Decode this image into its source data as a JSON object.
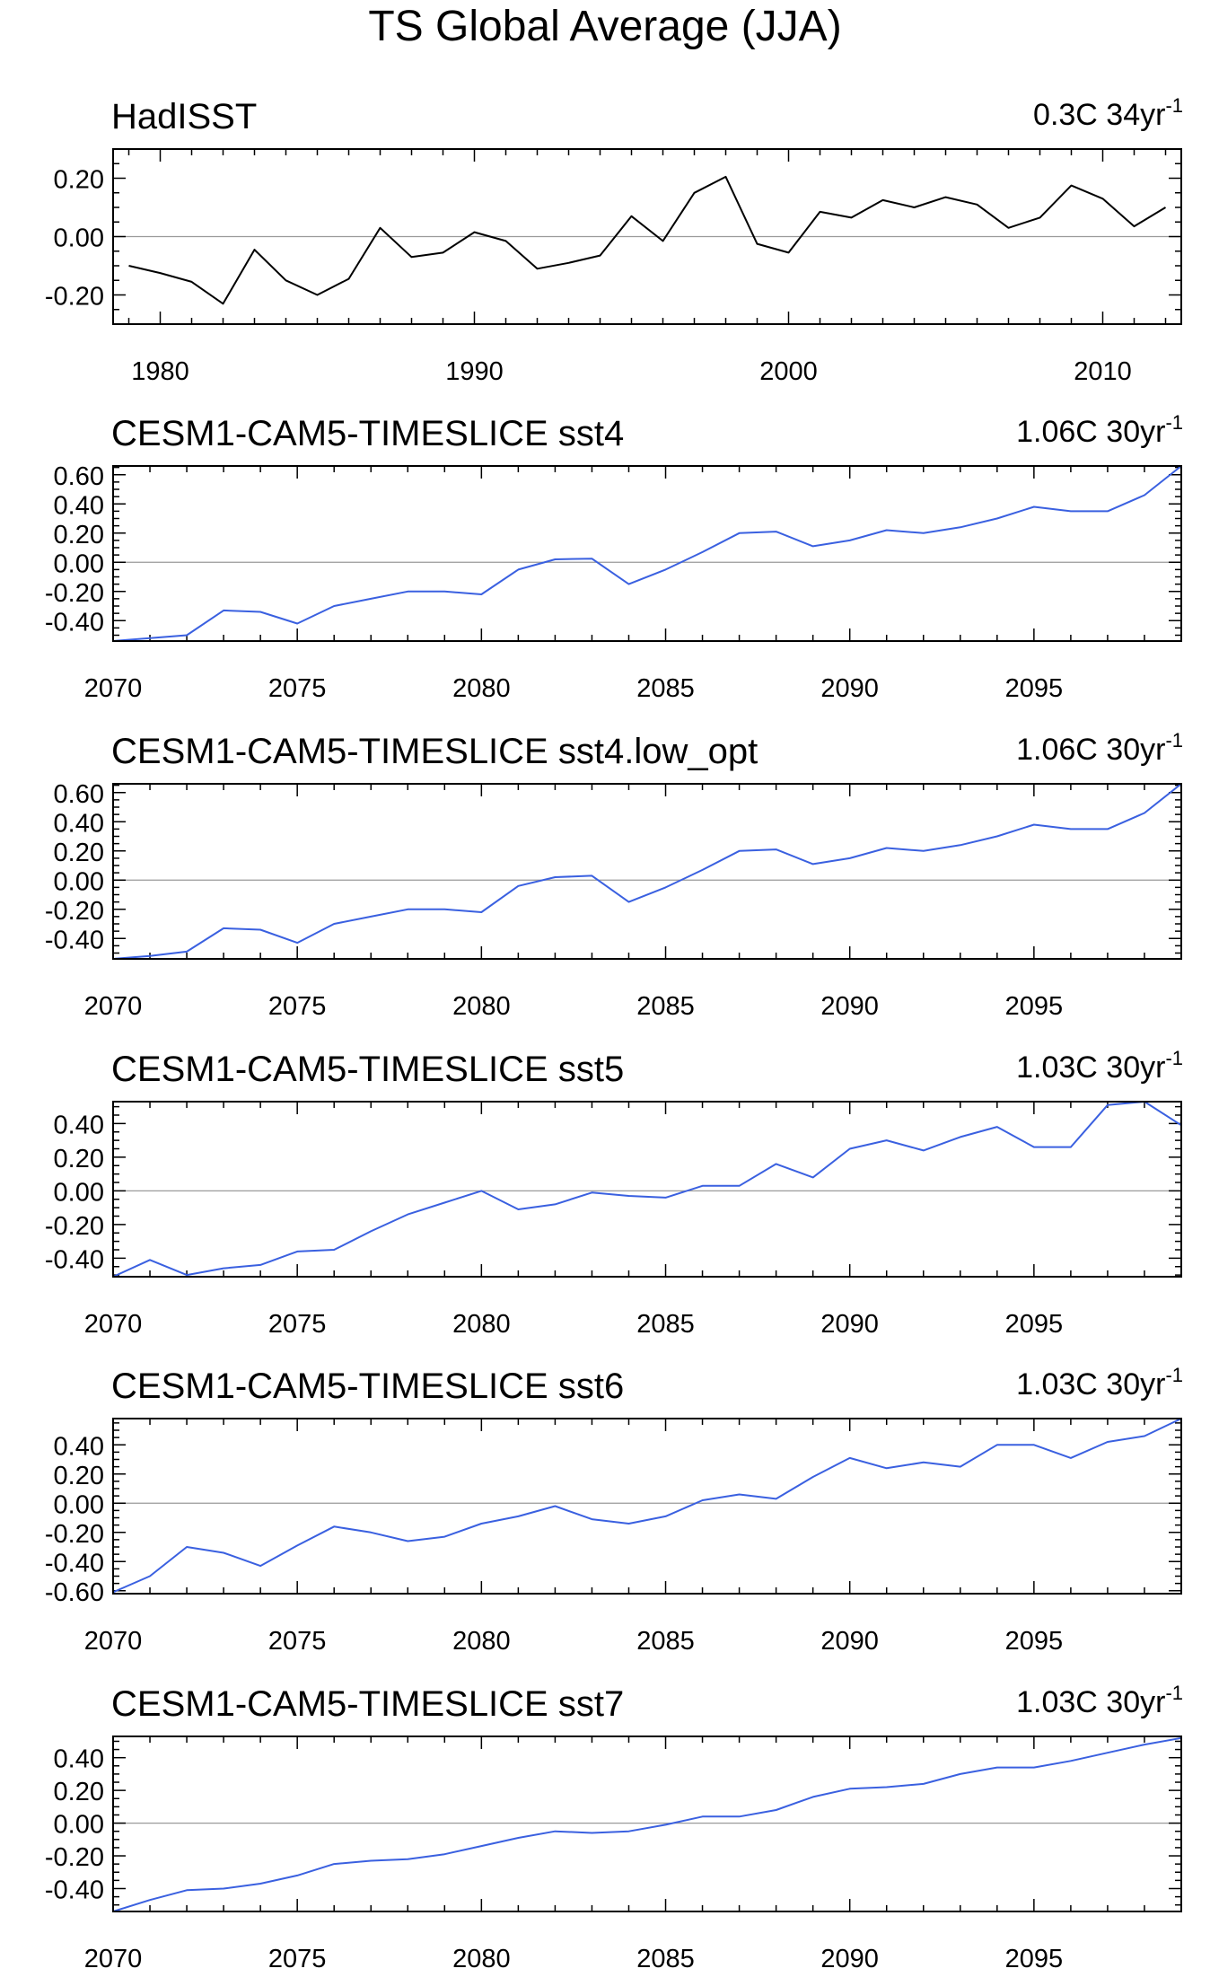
{
  "title": "TS Global Average (JJA)",
  "colors": {
    "observed": "#000000",
    "model": "#3a60e0",
    "zero_line": "#9a9a9a",
    "frame": "#000000"
  },
  "chart_data": [
    {
      "type": "line",
      "title": "HadISST",
      "trend_value": "0.3C 34yr",
      "trend_exp": "-1",
      "color": "#000000",
      "xlim": [
        1978.5,
        2012.5
      ],
      "ylim": [
        -0.3,
        0.3
      ],
      "xticks": [
        1980,
        1990,
        2000,
        2010
      ],
      "yticks": [
        0.2,
        0.0,
        -0.2
      ],
      "ytick_labels": [
        "0.20",
        "0.00",
        "-0.20"
      ],
      "x": [
        1979,
        1980,
        1981,
        1982,
        1983,
        1984,
        1985,
        1986,
        1987,
        1988,
        1989,
        1990,
        1991,
        1992,
        1993,
        1994,
        1995,
        1996,
        1997,
        1998,
        1999,
        2000,
        2001,
        2002,
        2003,
        2004,
        2005,
        2006,
        2007,
        2008,
        2009,
        2010,
        2011,
        2012
      ],
      "values": [
        -0.1,
        -0.125,
        -0.155,
        -0.23,
        -0.045,
        -0.15,
        -0.2,
        -0.145,
        0.03,
        -0.07,
        -0.055,
        0.015,
        -0.015,
        -0.11,
        -0.09,
        -0.065,
        0.07,
        -0.015,
        0.15,
        0.205,
        -0.025,
        -0.055,
        0.085,
        0.065,
        0.125,
        0.1,
        0.135,
        0.11,
        0.03,
        0.065,
        0.175,
        0.13,
        0.035,
        0.1
      ]
    },
    {
      "type": "line",
      "title": "CESM1-CAM5-TIMESLICE sst4",
      "trend_value": "1.06C 30yr",
      "trend_exp": "-1",
      "color": "#3a60e0",
      "xlim": [
        2070,
        2099
      ],
      "ylim": [
        -0.54,
        0.66
      ],
      "xticks": [
        2070,
        2075,
        2080,
        2085,
        2090,
        2095
      ],
      "yticks": [
        0.6,
        0.4,
        0.2,
        0.0,
        -0.2,
        -0.4
      ],
      "ytick_labels": [
        "0.60",
        "0.40",
        "0.20",
        "0.00",
        "-0.20",
        "-0.40"
      ],
      "x": [
        2070,
        2071,
        2072,
        2073,
        2074,
        2075,
        2076,
        2077,
        2078,
        2079,
        2080,
        2081,
        2082,
        2083,
        2084,
        2085,
        2086,
        2087,
        2088,
        2089,
        2090,
        2091,
        2092,
        2093,
        2094,
        2095,
        2096,
        2097,
        2098,
        2099
      ],
      "values": [
        -0.54,
        -0.52,
        -0.5,
        -0.33,
        -0.34,
        -0.42,
        -0.3,
        -0.25,
        -0.2,
        -0.2,
        -0.22,
        -0.05,
        0.02,
        0.025,
        -0.15,
        -0.05,
        0.07,
        0.2,
        0.21,
        0.11,
        0.15,
        0.22,
        0.2,
        0.24,
        0.3,
        0.38,
        0.35,
        0.35,
        0.46,
        0.66
      ]
    },
    {
      "type": "line",
      "title": "CESM1-CAM5-TIMESLICE sst4.low_opt",
      "trend_value": "1.06C 30yr",
      "trend_exp": "-1",
      "color": "#3a60e0",
      "xlim": [
        2070,
        2099
      ],
      "ylim": [
        -0.54,
        0.66
      ],
      "xticks": [
        2070,
        2075,
        2080,
        2085,
        2090,
        2095
      ],
      "yticks": [
        0.6,
        0.4,
        0.2,
        0.0,
        -0.2,
        -0.4
      ],
      "ytick_labels": [
        "0.60",
        "0.40",
        "0.20",
        "0.00",
        "-0.20",
        "-0.40"
      ],
      "x": [
        2070,
        2071,
        2072,
        2073,
        2074,
        2075,
        2076,
        2077,
        2078,
        2079,
        2080,
        2081,
        2082,
        2083,
        2084,
        2085,
        2086,
        2087,
        2088,
        2089,
        2090,
        2091,
        2092,
        2093,
        2094,
        2095,
        2096,
        2097,
        2098,
        2099
      ],
      "values": [
        -0.54,
        -0.52,
        -0.49,
        -0.33,
        -0.34,
        -0.43,
        -0.3,
        -0.25,
        -0.2,
        -0.2,
        -0.22,
        -0.04,
        0.02,
        0.03,
        -0.15,
        -0.05,
        0.07,
        0.2,
        0.21,
        0.11,
        0.15,
        0.22,
        0.2,
        0.24,
        0.3,
        0.38,
        0.35,
        0.35,
        0.46,
        0.66
      ]
    },
    {
      "type": "line",
      "title": "CESM1-CAM5-TIMESLICE sst5",
      "trend_value": "1.03C 30yr",
      "trend_exp": "-1",
      "color": "#3a60e0",
      "xlim": [
        2070,
        2099
      ],
      "ylim": [
        -0.51,
        0.53
      ],
      "xticks": [
        2070,
        2075,
        2080,
        2085,
        2090,
        2095
      ],
      "yticks": [
        0.4,
        0.2,
        0.0,
        -0.2,
        -0.4
      ],
      "ytick_labels": [
        "0.40",
        "0.20",
        "0.00",
        "-0.20",
        "-0.40"
      ],
      "x": [
        2070,
        2071,
        2072,
        2073,
        2074,
        2075,
        2076,
        2077,
        2078,
        2079,
        2080,
        2081,
        2082,
        2083,
        2084,
        2085,
        2086,
        2087,
        2088,
        2089,
        2090,
        2091,
        2092,
        2093,
        2094,
        2095,
        2096,
        2097,
        2098,
        2099
      ],
      "values": [
        -0.51,
        -0.41,
        -0.5,
        -0.46,
        -0.44,
        -0.36,
        -0.35,
        -0.24,
        -0.14,
        -0.07,
        0.0,
        -0.11,
        -0.08,
        -0.01,
        -0.03,
        -0.04,
        0.03,
        0.03,
        0.16,
        0.08,
        0.25,
        0.3,
        0.24,
        0.32,
        0.38,
        0.26,
        0.26,
        0.51,
        0.53,
        0.39
      ]
    },
    {
      "type": "line",
      "title": "CESM1-CAM5-TIMESLICE sst6",
      "trend_value": "1.03C 30yr",
      "trend_exp": "-1",
      "color": "#3a60e0",
      "xlim": [
        2070,
        2099
      ],
      "ylim": [
        -0.62,
        0.58
      ],
      "xticks": [
        2070,
        2075,
        2080,
        2085,
        2090,
        2095
      ],
      "yticks": [
        0.4,
        0.2,
        0.0,
        -0.2,
        -0.4,
        -0.6
      ],
      "ytick_labels": [
        "0.40",
        "0.20",
        "0.00",
        "-0.20",
        "-0.40",
        "-0.60"
      ],
      "x": [
        2070,
        2071,
        2072,
        2073,
        2074,
        2075,
        2076,
        2077,
        2078,
        2079,
        2080,
        2081,
        2082,
        2083,
        2084,
        2085,
        2086,
        2087,
        2088,
        2089,
        2090,
        2091,
        2092,
        2093,
        2094,
        2095,
        2096,
        2097,
        2098,
        2099
      ],
      "values": [
        -0.61,
        -0.5,
        -0.3,
        -0.34,
        -0.43,
        -0.29,
        -0.16,
        -0.2,
        -0.26,
        -0.23,
        -0.14,
        -0.09,
        -0.02,
        -0.11,
        -0.14,
        -0.09,
        0.02,
        0.06,
        0.03,
        0.18,
        0.31,
        0.24,
        0.28,
        0.25,
        0.4,
        0.4,
        0.31,
        0.42,
        0.46,
        0.58
      ]
    },
    {
      "type": "line",
      "title": "CESM1-CAM5-TIMESLICE sst7",
      "trend_value": "1.03C 30yr",
      "trend_exp": "-1",
      "color": "#3a60e0",
      "xlim": [
        2070,
        2099
      ],
      "ylim": [
        -0.54,
        0.53
      ],
      "xticks": [
        2070,
        2075,
        2080,
        2085,
        2090,
        2095
      ],
      "yticks": [
        0.4,
        0.2,
        0.0,
        -0.2,
        -0.4
      ],
      "ytick_labels": [
        "0.40",
        "0.20",
        "0.00",
        "-0.20",
        "-0.40"
      ],
      "x": [
        2070,
        2071,
        2072,
        2073,
        2074,
        2075,
        2076,
        2077,
        2078,
        2079,
        2080,
        2081,
        2082,
        2083,
        2084,
        2085,
        2086,
        2087,
        2088,
        2089,
        2090,
        2091,
        2092,
        2093,
        2094,
        2095,
        2096,
        2097,
        2098,
        2099
      ],
      "values": [
        -0.54,
        -0.47,
        -0.41,
        -0.4,
        -0.37,
        -0.32,
        -0.25,
        -0.23,
        -0.22,
        -0.19,
        -0.14,
        -0.09,
        -0.05,
        -0.06,
        -0.05,
        -0.01,
        0.04,
        0.04,
        0.08,
        0.16,
        0.21,
        0.22,
        0.24,
        0.3,
        0.34,
        0.34,
        0.38,
        0.43,
        0.48,
        0.52
      ]
    }
  ]
}
